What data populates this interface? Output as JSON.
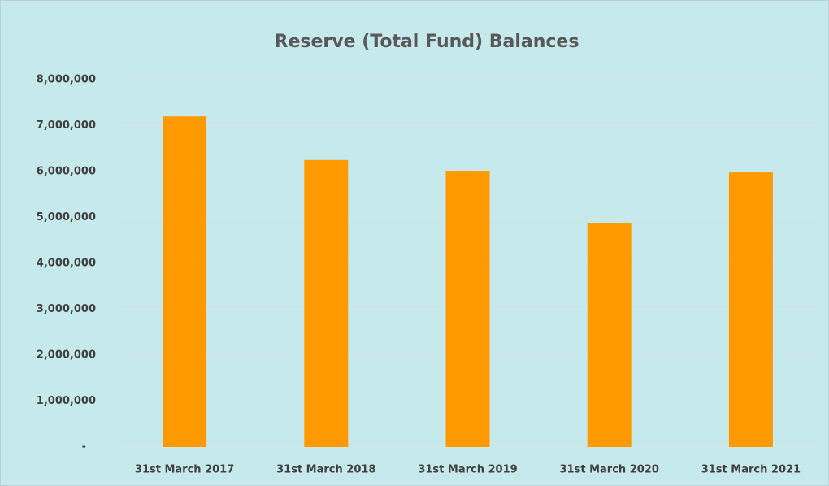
{
  "chart_data": {
    "type": "bar",
    "title": "Reserve (Total Fund) Balances",
    "categories": [
      "31st March 2017",
      "31st March 2018",
      "31st March 2019",
      "31st March 2020",
      "31st March 2021"
    ],
    "values": [
      7200000,
      6250000,
      6000000,
      4880000,
      5980000
    ],
    "color": "#ff9900",
    "ylim": [
      0,
      8000000
    ],
    "yticks": [
      {
        "value": 0,
        "label": "-"
      },
      {
        "value": 1000000,
        "label": "1,000,000"
      },
      {
        "value": 2000000,
        "label": "2,000,000"
      },
      {
        "value": 3000000,
        "label": "3,000,000"
      },
      {
        "value": 4000000,
        "label": "4,000,000"
      },
      {
        "value": 5000000,
        "label": "5,000,000"
      },
      {
        "value": 6000000,
        "label": "6,000,000"
      },
      {
        "value": 7000000,
        "label": "7,000,000"
      },
      {
        "value": 8000000,
        "label": "8,000,000"
      }
    ],
    "grid": true
  }
}
